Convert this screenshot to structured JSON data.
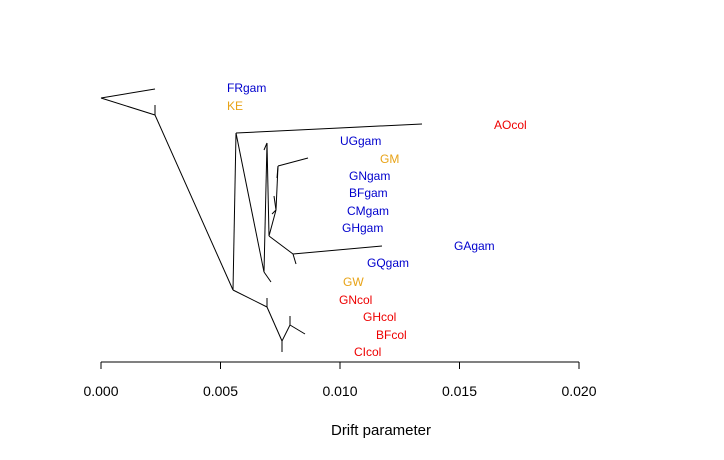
{
  "chart_data": {
    "type": "tree",
    "xlabel": "Drift parameter",
    "xlim": [
      0,
      0.02
    ],
    "x_ticks": [
      "0.000",
      "0.005",
      "0.010",
      "0.015",
      "0.020"
    ],
    "x_tick_values": [
      0.0,
      0.005,
      0.01,
      0.015,
      0.02
    ],
    "colors": {
      "gambiae": "#0000CD",
      "coluzzii": "#EE0000",
      "unassigned": "#E8A317"
    },
    "tips": [
      {
        "name": "FRgam",
        "group": "gambiae"
      },
      {
        "name": "KE",
        "group": "unassigned"
      },
      {
        "name": "AOcol",
        "group": "coluzzii"
      },
      {
        "name": "UGgam",
        "group": "gambiae"
      },
      {
        "name": "GM",
        "group": "unassigned"
      },
      {
        "name": "GNgam",
        "group": "gambiae"
      },
      {
        "name": "BFgam",
        "group": "gambiae"
      },
      {
        "name": "CMgam",
        "group": "gambiae"
      },
      {
        "name": "GHgam",
        "group": "gambiae"
      },
      {
        "name": "GAgam",
        "group": "gambiae"
      },
      {
        "name": "GQgam",
        "group": "gambiae"
      },
      {
        "name": "GW",
        "group": "unassigned"
      },
      {
        "name": "GNcol",
        "group": "coluzzii"
      },
      {
        "name": "GHcol",
        "group": "coluzzii"
      },
      {
        "name": "BFcol",
        "group": "coluzzii"
      },
      {
        "name": "CIcol",
        "group": "coluzzii"
      }
    ]
  }
}
